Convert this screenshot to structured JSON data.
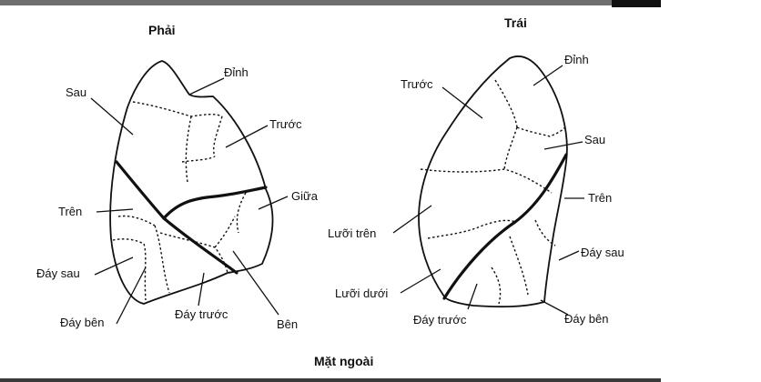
{
  "right_lung": {
    "title": "Phải",
    "labels": {
      "apex": "Đỉnh",
      "posterior": "Sau",
      "anterior": "Trước",
      "middle": "Giữa",
      "superior": "Trên",
      "posterior_basal": "Đáy sau",
      "lateral_basal": "Đáy bên",
      "anterior_basal": "Đáy trước",
      "lateral": "Bên"
    }
  },
  "left_lung": {
    "title": "Trái",
    "labels": {
      "apex": "Đỉnh",
      "anterior": "Trước",
      "posterior": "Sau",
      "superior": "Trên",
      "superior_lingular": "Lưỡi trên",
      "posterior_basal": "Đáy sau",
      "inferior_lingular": "Lưỡi dưới",
      "anterior_basal": "Đáy trước",
      "lateral_basal": "Đáy bên"
    }
  },
  "caption": "Mặt ngoài"
}
